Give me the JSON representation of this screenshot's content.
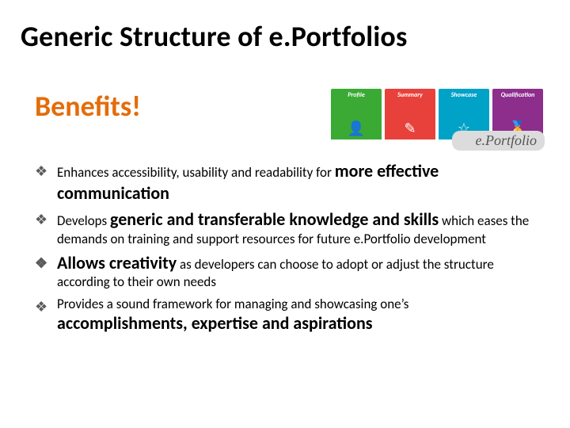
{
  "title": "Generic Structure of e.Portfolios",
  "subhead": {
    "text": "Benefits!",
    "color": "#e46c0a"
  },
  "badge": {
    "cards": [
      {
        "label": "Profile",
        "bg": "#3aaa35",
        "icon": "👤"
      },
      {
        "label": "Summary",
        "bg": "#e8413c",
        "icon": "✎"
      },
      {
        "label": "Showcase",
        "bg": "#00a2c7",
        "icon": "☆"
      },
      {
        "label": "Qualification",
        "bg": "#8d2e8d",
        "icon": "🏅"
      }
    ],
    "brand": "e.Portfolio"
  },
  "bullets": [
    {
      "lead": "Enhances accessibility, usability and readability for ",
      "bigA": "more effective communication",
      "trail": ""
    },
    {
      "lead": "Develops ",
      "bigA": "generic and transferable knowledge and skills",
      "trail": " which eases the demands on training and support resources for future e.Portfolio development"
    },
    {
      "lead": "",
      "bigA": "Allows creativity",
      "trail": " as developers can choose to adopt or adjust the structure according to their own needs"
    },
    {
      "lead": "Provides a sound framework for managing and showcasing one’s ",
      "bigA": "accomplishments, expertise and aspirations",
      "trail": ""
    }
  ],
  "bullet_glyph": "❖",
  "bullet_color": "#5a5a5a"
}
